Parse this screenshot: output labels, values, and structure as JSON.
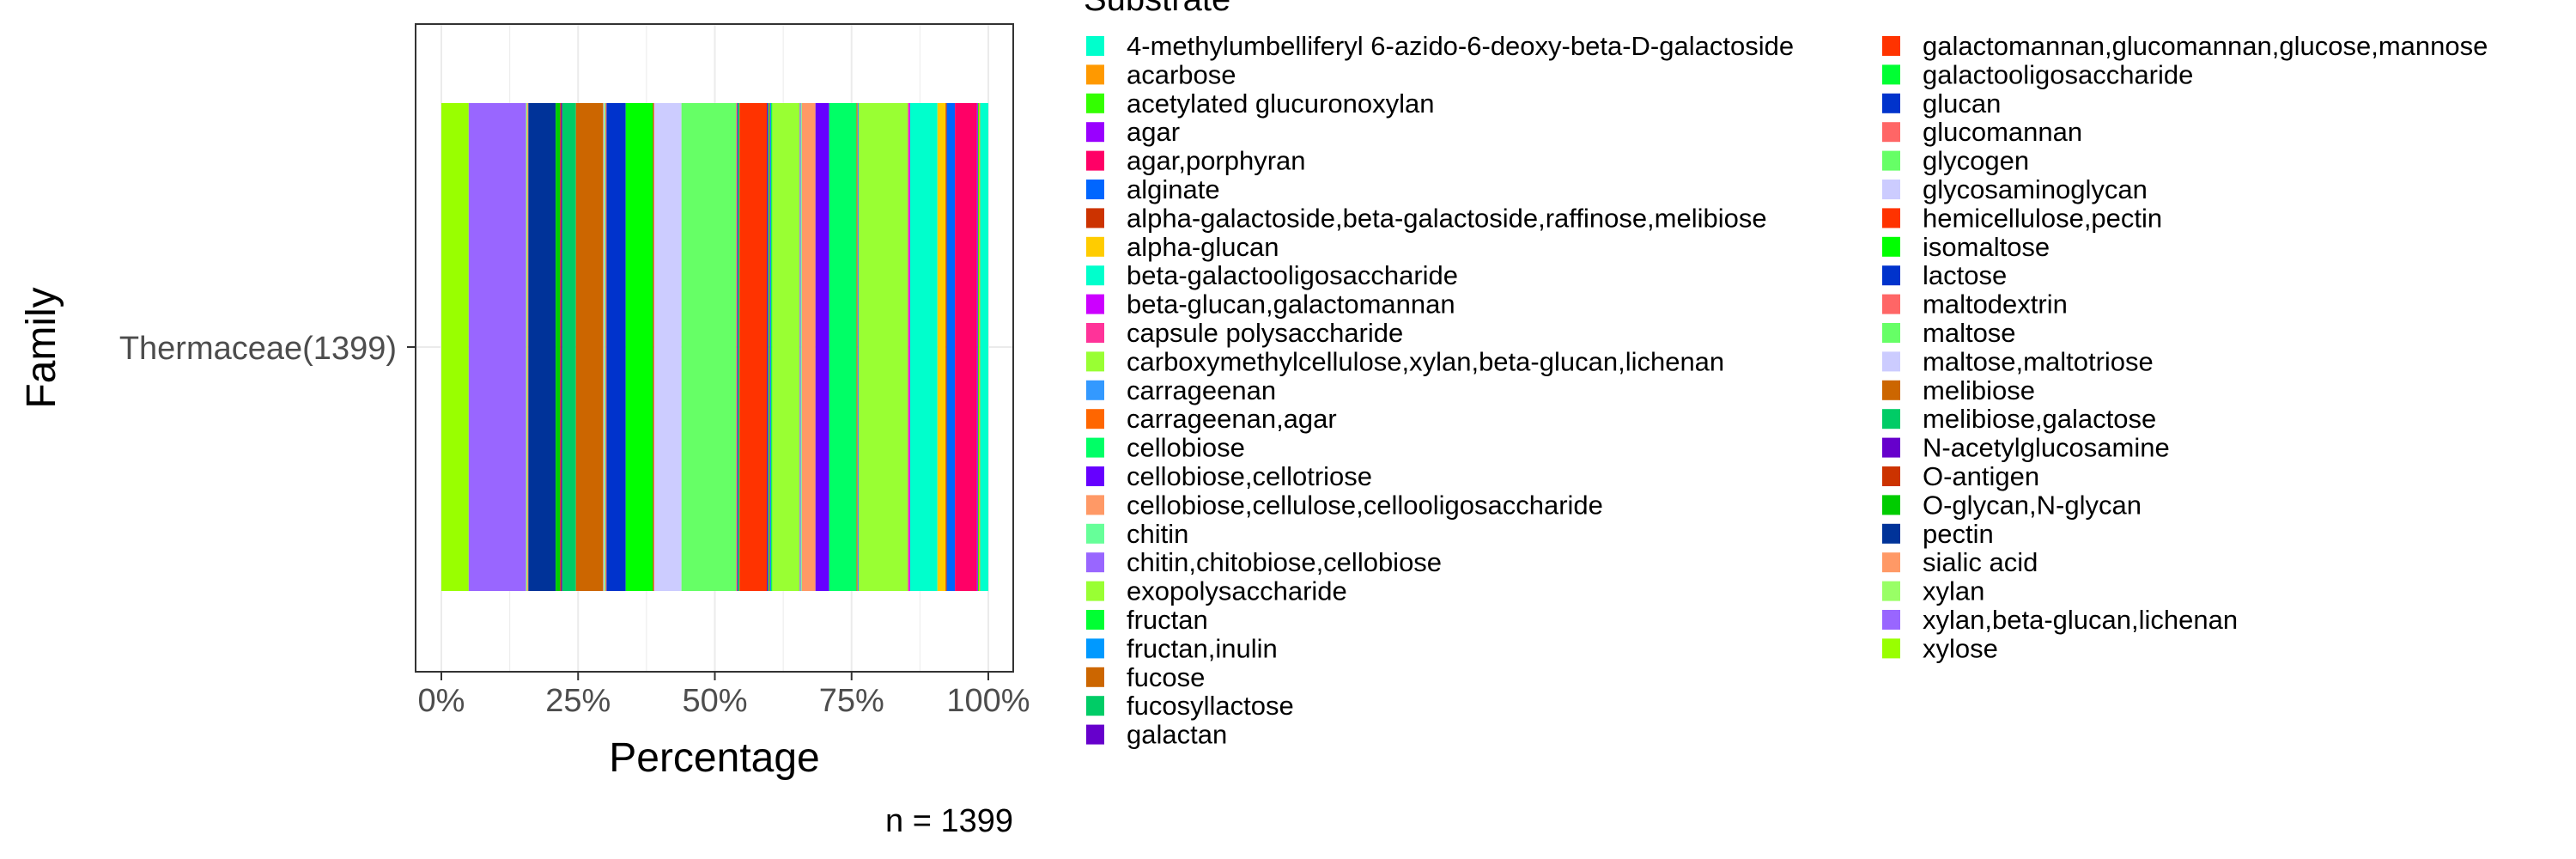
{
  "chart_data": {
    "type": "bar",
    "orientation": "horizontal",
    "stacked": "percent",
    "title": "",
    "xlabel": "Percentage",
    "ylabel": "Family",
    "xlim": [
      0,
      1
    ],
    "x_ticks": [
      {
        "value": 0,
        "label": "0%"
      },
      {
        "value": 0.25,
        "label": "25%"
      },
      {
        "value": 0.5,
        "label": "50%"
      },
      {
        "value": 0.75,
        "label": "75%"
      },
      {
        "value": 1,
        "label": "100%"
      }
    ],
    "categories": [
      "Thermaceae(1399)"
    ],
    "caption": "n = 1399",
    "grid": true,
    "legend_position": "right",
    "legend_title": "Substrate",
    "series": [
      {
        "name": "xylose",
        "color": "#99ff00",
        "values": [
          0.05
        ]
      },
      {
        "name": "xylan,beta-glucan,lichenan",
        "color": "#9966ff",
        "values": [
          0.105
        ]
      },
      {
        "name": "xylan",
        "color": "#99ff66",
        "values": [
          0.002
        ]
      },
      {
        "name": "sialic acid",
        "color": "#ff9966",
        "values": [
          0.002
        ]
      },
      {
        "name": "pectin",
        "color": "#003399",
        "values": [
          0.05
        ]
      },
      {
        "name": "O-glycan,N-glycan",
        "color": "#00cc00",
        "values": [
          0.008
        ]
      },
      {
        "name": "O-antigen",
        "color": "#cc3300",
        "values": [
          0.002
        ]
      },
      {
        "name": "N-acetylglucosamine",
        "color": "#6600cc",
        "values": [
          0.002
        ]
      },
      {
        "name": "melibiose,galactose",
        "color": "#00cc66",
        "values": [
          0.025
        ]
      },
      {
        "name": "melibiose",
        "color": "#cc6600",
        "values": [
          0.05
        ]
      },
      {
        "name": "maltose,maltotriose",
        "color": "#ccccff",
        "values": [
          0.002
        ]
      },
      {
        "name": "maltose",
        "color": "#66ff66",
        "values": [
          0.002
        ]
      },
      {
        "name": "maltodextrin",
        "color": "#ff6666",
        "values": [
          0.002
        ]
      },
      {
        "name": "lactose",
        "color": "#0033cc",
        "values": [
          0.035
        ]
      },
      {
        "name": "isomaltose",
        "color": "#00ff00",
        "values": [
          0.05
        ]
      },
      {
        "name": "hemicellulose,pectin",
        "color": "#ff3300",
        "values": [
          0.002
        ]
      },
      {
        "name": "glycosaminoglycan",
        "color": "#ccccff",
        "values": [
          0.05
        ]
      },
      {
        "name": "glycogen",
        "color": "#66ff66",
        "values": [
          0.1
        ]
      },
      {
        "name": "glucomannan",
        "color": "#ff6666",
        "values": [
          0.002
        ]
      },
      {
        "name": "glucan",
        "color": "#0033cc",
        "values": [
          0.002
        ]
      },
      {
        "name": "galactooligosaccharide",
        "color": "#00ff33",
        "values": [
          0.002
        ]
      },
      {
        "name": "galactomannan,glucomannan,glucose,mannose",
        "color": "#ff3300",
        "values": [
          0.05
        ]
      },
      {
        "name": "galactan",
        "color": "#6600cc",
        "values": [
          0.002
        ]
      },
      {
        "name": "fucosyllactose",
        "color": "#00cc66",
        "values": [
          0.002
        ]
      },
      {
        "name": "fucose",
        "color": "#cc6600",
        "values": [
          0.002
        ]
      },
      {
        "name": "fructan,inulin",
        "color": "#0099ff",
        "values": [
          0.002
        ]
      },
      {
        "name": "fructan",
        "color": "#00ff33",
        "values": [
          0.002
        ]
      },
      {
        "name": "exopolysaccharide",
        "color": "#99ff33",
        "values": [
          0.05
        ]
      },
      {
        "name": "chitin,chitobiose,cellobiose",
        "color": "#9966ff",
        "values": [
          0.002
        ]
      },
      {
        "name": "chitin",
        "color": "#66ff99",
        "values": [
          0.002
        ]
      },
      {
        "name": "cellobiose,cellulose,cellooligosaccharide",
        "color": "#ff9966",
        "values": [
          0.025
        ]
      },
      {
        "name": "cellobiose,cellotriose",
        "color": "#6600ff",
        "values": [
          0.025
        ]
      },
      {
        "name": "cellobiose",
        "color": "#00ff66",
        "values": [
          0.05
        ]
      },
      {
        "name": "carrageenan,agar",
        "color": "#ff6600",
        "values": [
          0.002
        ]
      },
      {
        "name": "carrageenan",
        "color": "#3399ff",
        "values": [
          0.002
        ]
      },
      {
        "name": "carboxymethylcellulose,xylan,beta-glucan,lichenan",
        "color": "#99ff33",
        "values": [
          0.09
        ]
      },
      {
        "name": "capsule polysaccharide",
        "color": "#ff3399",
        "values": [
          0.002
        ]
      },
      {
        "name": "beta-glucan,galactomannan",
        "color": "#cc00ff",
        "values": [
          0.002
        ]
      },
      {
        "name": "beta-galactooligosaccharide",
        "color": "#00ffcc",
        "values": [
          0.05
        ]
      },
      {
        "name": "alpha-glucan",
        "color": "#ffcc00",
        "values": [
          0.015
        ]
      },
      {
        "name": "alpha-galactoside,beta-galactoside,raffinose,melibiose",
        "color": "#cc3300",
        "values": [
          0.002
        ]
      },
      {
        "name": "alginate",
        "color": "#0066ff",
        "values": [
          0.015
        ]
      },
      {
        "name": "agar,porphyran",
        "color": "#ff0066",
        "values": [
          0.04
        ]
      },
      {
        "name": "agar",
        "color": "#9900ff",
        "values": [
          0.002
        ]
      },
      {
        "name": "acetylated glucuronoxylan",
        "color": "#33ff00",
        "values": [
          0.002
        ]
      },
      {
        "name": "acarbose",
        "color": "#ff9900",
        "values": [
          0.002
        ]
      },
      {
        "name": "4-methylumbelliferyl 6-azido-6-deoxy-beta-D-galactoside",
        "color": "#00ffcc",
        "values": [
          0.015
        ]
      }
    ]
  }
}
